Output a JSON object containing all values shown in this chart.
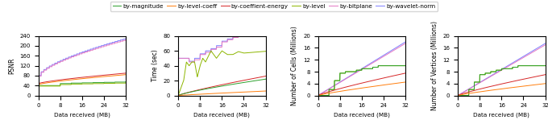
{
  "legend_labels": [
    "by-magnitude",
    "by-level-coeff",
    "by-coeffient-energy",
    "by-level",
    "by-bitplane",
    "by-wavelet-norm"
  ],
  "colors": {
    "by-magnitude": "#2ca02c",
    "by-level-coeff": "#ff7f0e",
    "by-coeffient-energy": "#d62728",
    "by-level": "#8db600",
    "by-bitplane": "#e377c2",
    "by-wavelet-norm": "#7f7fff"
  },
  "xlim": [
    0,
    32
  ],
  "xticks": [
    0,
    8,
    16,
    24,
    32
  ],
  "plots": [
    {
      "ylabel": "PSNR",
      "xlabel": "Data received (MB)",
      "ylim": [
        0,
        240
      ],
      "yticks": [
        0,
        40,
        80,
        120,
        160,
        200,
        240
      ]
    },
    {
      "ylabel": "Time (sec)",
      "xlabel": "Data received (MB)",
      "ylim": [
        0,
        80
      ],
      "yticks": [
        0,
        20,
        40,
        60,
        80
      ]
    },
    {
      "ylabel": "Number of Cells (Millions)",
      "xlabel": "Data received (MB)",
      "ylim": [
        0,
        20
      ],
      "yticks": [
        0,
        4,
        8,
        12,
        16,
        20
      ]
    },
    {
      "ylabel": "Number of Vertices (Millions)",
      "xlabel": "Data received (MB)",
      "ylim": [
        0,
        20
      ],
      "yticks": [
        0,
        4,
        8,
        12,
        16,
        20
      ]
    }
  ]
}
